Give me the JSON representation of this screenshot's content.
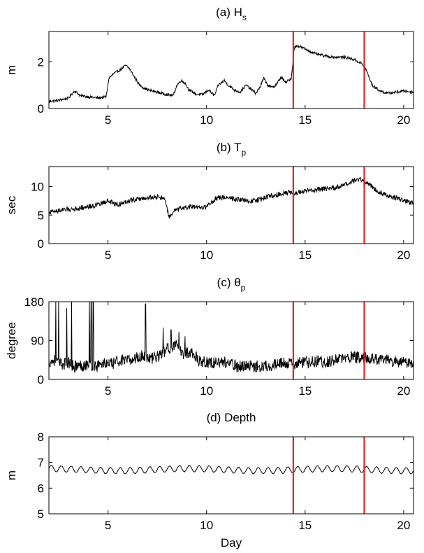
{
  "chart_data": [
    {
      "type": "line",
      "title": "(a) H",
      "title_subscript": "s",
      "ylabel": "m",
      "xlim": [
        2,
        20.5
      ],
      "ylim": [
        0,
        3.3
      ],
      "xticks": [
        5,
        10,
        15,
        20
      ],
      "yticks": [
        0,
        2
      ],
      "vlines": [
        14.4,
        18.0
      ],
      "vline_color": "#e32626",
      "line_color": "#000000",
      "series": [
        {
          "x": [
            2.0,
            2.5,
            3.0,
            3.3,
            3.6,
            4.0,
            4.5,
            4.9,
            5.05,
            5.3,
            5.6,
            5.9,
            6.1,
            6.3,
            6.6,
            7.0,
            7.5,
            8.0,
            8.3,
            8.5,
            8.7,
            8.9,
            9.1,
            9.3,
            9.5,
            9.8,
            10.1,
            10.4,
            10.6,
            10.9,
            11.1,
            11.4,
            11.7,
            12.0,
            12.3,
            12.5,
            12.7,
            12.9,
            13.1,
            13.3,
            13.5,
            13.8,
            14.0,
            14.3,
            14.45,
            14.6,
            15.0,
            15.5,
            16.0,
            16.5,
            17.0,
            17.5,
            17.9,
            18.1,
            18.4,
            18.8,
            19.2,
            19.6,
            20.0,
            20.5
          ],
          "y": [
            0.3,
            0.35,
            0.45,
            0.75,
            0.55,
            0.5,
            0.45,
            0.5,
            1.3,
            1.5,
            1.65,
            1.85,
            1.7,
            1.4,
            1.0,
            0.8,
            0.7,
            0.6,
            0.55,
            1.0,
            1.2,
            1.1,
            0.8,
            0.7,
            0.6,
            0.6,
            0.8,
            0.55,
            1.0,
            1.2,
            1.0,
            0.8,
            0.7,
            1.0,
            0.8,
            0.65,
            0.9,
            1.3,
            1.0,
            0.9,
            1.0,
            1.35,
            1.1,
            1.3,
            2.6,
            2.7,
            2.55,
            2.35,
            2.25,
            2.2,
            2.2,
            2.1,
            1.9,
            1.65,
            1.0,
            0.75,
            0.65,
            0.7,
            0.75,
            0.7
          ],
          "noise": 0.06
        }
      ]
    },
    {
      "type": "line",
      "title": "(b) T",
      "title_subscript": "p",
      "ylabel": "sec",
      "xlim": [
        2,
        20.5
      ],
      "ylim": [
        0,
        13.5
      ],
      "xticks": [
        5,
        10,
        15,
        20
      ],
      "yticks": [
        0,
        5,
        10
      ],
      "vlines": [
        14.4,
        18.0
      ],
      "vline_color": "#e32626",
      "line_color": "#000000",
      "series": [
        {
          "x": [
            2.0,
            2.5,
            3.0,
            3.5,
            4.0,
            4.5,
            5.0,
            5.5,
            6.0,
            6.5,
            7.0,
            7.5,
            7.9,
            8.1,
            8.4,
            8.8,
            9.2,
            9.6,
            10.0,
            10.5,
            11.0,
            11.5,
            12.0,
            12.5,
            13.0,
            13.5,
            14.0,
            14.4,
            15.0,
            15.5,
            16.0,
            16.5,
            17.0,
            17.5,
            17.8,
            18.0,
            18.3,
            18.8,
            19.3,
            19.8,
            20.5
          ],
          "y": [
            5.5,
            5.8,
            6.0,
            6.2,
            6.5,
            6.8,
            7.5,
            6.8,
            7.5,
            7.8,
            8.0,
            8.2,
            7.8,
            4.5,
            5.8,
            6.2,
            6.5,
            6.2,
            6.5,
            8.0,
            8.2,
            7.8,
            7.5,
            7.5,
            8.2,
            8.5,
            9.0,
            8.8,
            9.2,
            9.4,
            9.6,
            9.8,
            10.2,
            11.0,
            11.3,
            11.0,
            10.2,
            9.0,
            8.3,
            7.8,
            7.0
          ],
          "noise": 0.45
        }
      ]
    },
    {
      "type": "line",
      "title": "(c) θ",
      "title_subscript": "p",
      "ylabel": "degree",
      "xlim": [
        2,
        20.5
      ],
      "ylim": [
        0,
        180
      ],
      "xticks": [
        5,
        10,
        15,
        20
      ],
      "yticks": [
        0,
        90,
        180
      ],
      "vlines": [
        14.4,
        18.0
      ],
      "vline_color": "#e32626",
      "line_color": "#000000",
      "series": [
        {
          "x": [
            2.0,
            2.3,
            2.6,
            3.0,
            3.3,
            3.6,
            4.0,
            4.4,
            4.8,
            5.2,
            5.6,
            6.0,
            6.4,
            6.8,
            7.2,
            7.6,
            8.0,
            8.4,
            8.8,
            9.2,
            9.6,
            10.0,
            10.4,
            10.8,
            11.2,
            11.6,
            12.0,
            12.5,
            13.0,
            13.5,
            14.0,
            14.4,
            15.0,
            15.5,
            16.0,
            16.5,
            17.0,
            17.5,
            18.0,
            18.5,
            19.0,
            19.5,
            20.0,
            20.5
          ],
          "y": [
            40,
            45,
            35,
            38,
            30,
            32,
            35,
            30,
            38,
            35,
            45,
            42,
            50,
            55,
            48,
            55,
            70,
            80,
            60,
            65,
            45,
            40,
            38,
            42,
            35,
            30,
            32,
            30,
            32,
            35,
            38,
            35,
            40,
            42,
            40,
            45,
            48,
            52,
            50,
            48,
            45,
            42,
            40,
            35
          ],
          "noise": 14,
          "spikes": [
            [
              2.35,
              180
            ],
            [
              2.5,
              180
            ],
            [
              2.9,
              165
            ],
            [
              3.15,
              180
            ],
            [
              4.05,
              180
            ],
            [
              4.15,
              180
            ],
            [
              4.25,
              180
            ],
            [
              6.9,
              175
            ],
            [
              7.8,
              120
            ],
            [
              8.2,
              115
            ],
            [
              8.6,
              110
            ],
            [
              8.9,
              100
            ]
          ]
        }
      ]
    },
    {
      "type": "line",
      "title": "(d) Depth",
      "ylabel": "m",
      "xlabel": "Day",
      "xlim": [
        2,
        20.5
      ],
      "ylim": [
        5,
        8
      ],
      "xticks": [
        5,
        10,
        15,
        20
      ],
      "yticks": [
        5,
        6,
        7,
        8
      ],
      "vlines": [
        14.4,
        18.0
      ],
      "vline_color": "#e32626",
      "line_color": "#000000",
      "series": [
        {
          "baseline": 6.72,
          "amplitude": 0.12,
          "period_days": 0.5,
          "x_start": 2.0,
          "x_end": 20.5
        }
      ]
    }
  ]
}
